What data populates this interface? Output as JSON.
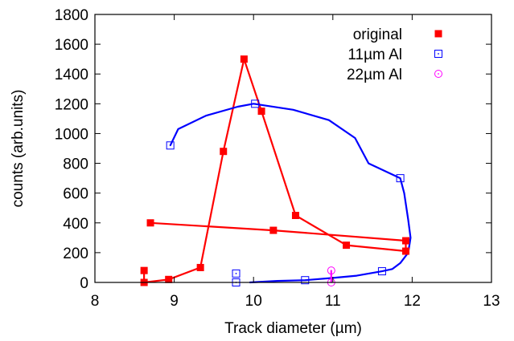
{
  "chart_data": {
    "type": "scatter",
    "xlabel": "Track diameter (µm)",
    "ylabel": "counts (arb.units)",
    "xlim": [
      8,
      13
    ],
    "ylim": [
      0,
      1800
    ],
    "x_ticks": [
      "8",
      "9",
      "10",
      "11",
      "12",
      "13"
    ],
    "y_ticks": [
      "0",
      "200",
      "400",
      "600",
      "800",
      "1000",
      "1200",
      "1400",
      "1600",
      "1800"
    ],
    "grid": false,
    "legend_position": "top-right",
    "series": [
      {
        "name": "original",
        "color": "#ff0000",
        "marker": "filled-square",
        "points": [
          [
            8.62,
            80
          ],
          [
            8.62,
            0
          ],
          [
            8.93,
            20
          ],
          [
            9.33,
            100
          ],
          [
            9.62,
            880
          ],
          [
            9.88,
            1500
          ],
          [
            10.1,
            1150
          ],
          [
            10.53,
            450
          ],
          [
            11.17,
            250
          ],
          [
            11.92,
            210
          ],
          [
            11.92,
            280
          ],
          [
            10.25,
            350
          ],
          [
            8.7,
            400
          ]
        ],
        "line": [
          [
            8.62,
            0
          ],
          [
            8.93,
            20
          ],
          [
            9.33,
            100
          ],
          [
            9.62,
            880
          ],
          [
            9.88,
            1500
          ],
          [
            10.1,
            1150
          ],
          [
            10.53,
            450
          ],
          [
            11.17,
            250
          ],
          [
            11.92,
            210
          ],
          [
            11.92,
            280
          ],
          [
            10.25,
            350
          ],
          [
            8.7,
            400
          ]
        ],
        "extra_segments": [
          [
            [
              8.62,
              80
            ],
            [
              8.62,
              0
            ]
          ]
        ]
      },
      {
        "name": "11µm Al",
        "color": "#0000ff",
        "marker": "open-square-dot",
        "points": [
          [
            8.95,
            920
          ],
          [
            10.02,
            1200
          ],
          [
            11.85,
            700
          ],
          [
            11.62,
            75
          ],
          [
            10.65,
            15
          ],
          [
            9.78,
            0
          ],
          [
            9.78,
            60
          ]
        ],
        "line": [
          [
            8.95,
            920
          ],
          [
            9.05,
            1030
          ],
          [
            9.4,
            1120
          ],
          [
            9.8,
            1180
          ],
          [
            10.0,
            1200
          ],
          [
            10.5,
            1160
          ],
          [
            10.95,
            1090
          ],
          [
            11.28,
            970
          ],
          [
            11.45,
            800
          ],
          [
            11.85,
            700
          ],
          [
            11.9,
            600
          ],
          [
            11.95,
            420
          ],
          [
            11.98,
            300
          ],
          [
            11.95,
            200
          ],
          [
            11.85,
            130
          ],
          [
            11.75,
            90
          ],
          [
            11.62,
            75
          ],
          [
            11.3,
            45
          ],
          [
            11.0,
            30
          ],
          [
            10.65,
            15
          ],
          [
            10.3,
            10
          ],
          [
            9.95,
            0
          ]
        ],
        "extra_segments": []
      },
      {
        "name": "22µm Al",
        "color": "#ff00ff",
        "marker": "open-circle-dot",
        "points": [
          [
            10.98,
            80
          ],
          [
            10.98,
            0
          ]
        ],
        "line": [],
        "extra_segments": [
          [
            [
              10.98,
              80
            ],
            [
              10.98,
              0
            ]
          ]
        ]
      }
    ]
  }
}
